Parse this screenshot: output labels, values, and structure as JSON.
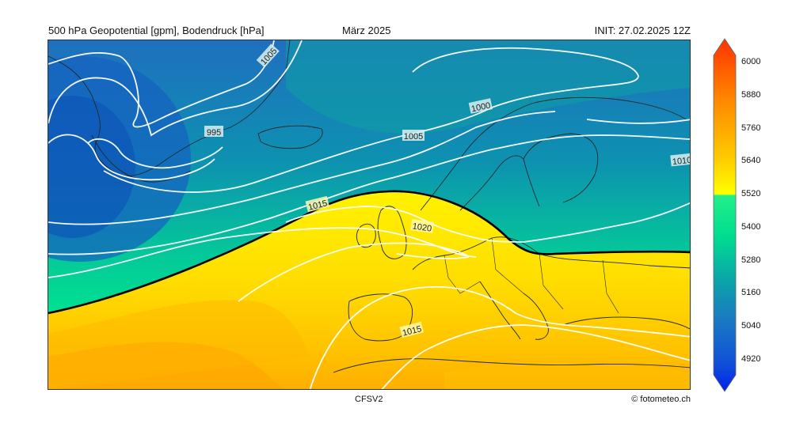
{
  "header": {
    "title_left": "500 hPa Geopotential [gpm], Bodendruck [hPa]",
    "title_center": "März 2025",
    "title_right": "INIT: 27.02.2025 12Z"
  },
  "footer": {
    "model": "CFSV2",
    "credit": "© fotometeo.ch"
  },
  "isobar_labels": [
    "1005",
    "995",
    "1000",
    "1005",
    "1010",
    "1015",
    "1020",
    "1015"
  ],
  "colorbar": {
    "min": 4920,
    "max": 6000,
    "ticks": [
      "6000",
      "5880",
      "5760",
      "5640",
      "5520",
      "5400",
      "5280",
      "5160",
      "5040",
      "4920"
    ],
    "colors": {
      "low": "#0033dd",
      "blue": "#1a70c8",
      "teal": "#0a9ea8",
      "green": "#00f080",
      "yellow": "#ffee00",
      "orange": "#ff9900",
      "high": "#ff3300"
    }
  }
}
